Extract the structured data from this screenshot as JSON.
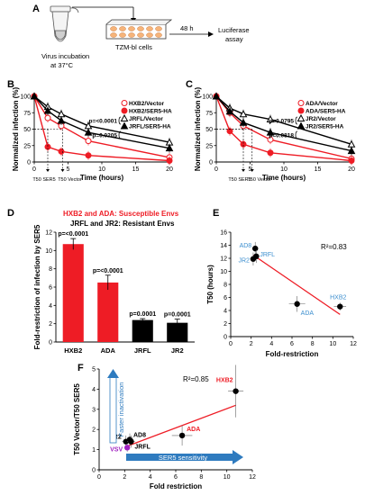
{
  "figure": {
    "panelA": {
      "letter": "A",
      "left_caption_1": "Virus incubation",
      "left_caption_2": "at 37°C",
      "cells_label": "TZM-bl cells",
      "time_label": "48 h",
      "assay_1": "Luciferase",
      "assay_2": "assay"
    },
    "panelD": {
      "title_1": "HXB2 and ADA:  Susceptible Envs",
      "title_2": "JRFL and JR2:  Resistant Envs"
    },
    "colors": {
      "red": "#ee1c25",
      "black": "#000000",
      "blue_label": "#3d8fcf",
      "purple": "#a020c0",
      "arrow_blue": "#2e7bbf"
    }
  },
  "chart_data": [
    {
      "panel": "B",
      "type": "line",
      "xlabel": "Time (hours)",
      "ylabel": "Normalized infection (%)",
      "xlim": [
        0,
        20
      ],
      "ylim": [
        0,
        100
      ],
      "xticks": [
        "0",
        "5",
        "10",
        "15",
        "20"
      ],
      "yticks": [
        "0",
        "25",
        "50",
        "75",
        "100"
      ],
      "x": [
        0,
        2,
        4,
        8,
        20
      ],
      "series": [
        {
          "name": "HXB2/Vector",
          "color": "#ee1c25",
          "marker": "circle-open",
          "values": [
            100,
            67,
            55,
            32,
            7
          ]
        },
        {
          "name": "HXB2/SER5-HA",
          "color": "#ee1c25",
          "marker": "circle-filled",
          "values": [
            100,
            23,
            16,
            10,
            2
          ]
        },
        {
          "name": "JRFL/Vector",
          "color": "#000000",
          "marker": "triangle-open",
          "values": [
            100,
            84,
            73,
            55,
            30
          ]
        },
        {
          "name": "JRFL/SER5-HA",
          "color": "#000000",
          "marker": "triangle-filled",
          "values": [
            100,
            78,
            63,
            45,
            21
          ]
        }
      ],
      "pvalues": [
        "p=<0.0001",
        "p=0.0205"
      ],
      "annotations": [
        "T50 SER5",
        "T50 Vector"
      ]
    },
    {
      "panel": "C",
      "type": "line",
      "xlabel": "Time (hours)",
      "ylabel": "Normalized infection (%)",
      "xlim": [
        0,
        20
      ],
      "ylim": [
        0,
        100
      ],
      "xticks": [
        "0",
        "5",
        "10",
        "15",
        "20"
      ],
      "yticks": [
        "0",
        "25",
        "50",
        "75",
        "100"
      ],
      "x": [
        0,
        2,
        4,
        8,
        20
      ],
      "series": [
        {
          "name": "ADA/Vector",
          "color": "#ee1c25",
          "marker": "circle-open",
          "values": [
            100,
            75,
            55,
            34,
            5
          ]
        },
        {
          "name": "ADA/SER5-HA",
          "color": "#ee1c25",
          "marker": "circle-filled",
          "values": [
            100,
            47,
            27,
            14,
            2
          ]
        },
        {
          "name": "JR2/Vector",
          "color": "#000000",
          "marker": "triangle-open",
          "values": [
            100,
            82,
            73,
            65,
            27
          ]
        },
        {
          "name": "JR2/SER5-HA",
          "color": "#000000",
          "marker": "triangle-filled",
          "values": [
            100,
            77,
            60,
            45,
            17
          ]
        }
      ],
      "pvalues": [
        "p=0.0795",
        "p=0.0818"
      ],
      "annotations": [
        "T50 SER5",
        "T50 Vector"
      ]
    },
    {
      "panel": "D",
      "type": "bar",
      "ylabel": "Fold-restriction of infection by SER5",
      "ylim": [
        0,
        12
      ],
      "yticks": [
        "0",
        "2",
        "4",
        "6",
        "8",
        "10",
        "12"
      ],
      "categories": [
        "HXB2",
        "ADA",
        "JRFL",
        "JR2"
      ],
      "values": [
        10.7,
        6.5,
        2.4,
        2.1
      ],
      "errors": [
        0.6,
        0.8,
        0.15,
        0.4
      ],
      "colors": [
        "#ee1c25",
        "#ee1c25",
        "#000000",
        "#000000"
      ],
      "labels": [
        "p=<0.0001",
        "p=<0.0001",
        "p=0.0001",
        "p=0.0001"
      ]
    },
    {
      "panel": "E",
      "type": "scatter",
      "xlabel": "Fold-restriction",
      "ylabel": "T50 (hours)",
      "xlim": [
        0,
        12
      ],
      "ylim": [
        0,
        16
      ],
      "xticks": [
        "0",
        "2",
        "4",
        "6",
        "8",
        "10",
        "12"
      ],
      "yticks": [
        "0",
        "2",
        "4",
        "6",
        "8",
        "10",
        "12",
        "14",
        "16"
      ],
      "points": [
        {
          "label": "AD8",
          "x": 2.4,
          "y": 13.5,
          "xerr": 0.3,
          "yerr": 1.0
        },
        {
          "label": "JRFL",
          "x": 2.5,
          "y": 12.3,
          "xerr": 0.3,
          "yerr": 1.0
        },
        {
          "label": "JR2",
          "x": 2.2,
          "y": 11.9,
          "xerr": 0.3,
          "yerr": 1.0
        },
        {
          "label": "ADA",
          "x": 6.5,
          "y": 5.0,
          "xerr": 0.8,
          "yerr": 1.2
        },
        {
          "label": "HXB2",
          "x": 10.7,
          "y": 4.6,
          "xerr": 0.6,
          "yerr": 0.6
        }
      ],
      "fit": {
        "x": [
          2.2,
          10.7
        ],
        "y": [
          12.5,
          3.4
        ]
      },
      "r2": "R²=0.83"
    },
    {
      "panel": "F",
      "type": "scatter",
      "xlabel": "Fold restriction",
      "ylabel": "T50 Vector/T50 SER5",
      "xlim": [
        0,
        12
      ],
      "ylim": [
        0,
        5
      ],
      "xticks": [
        "0",
        "2",
        "4",
        "6",
        "8",
        "10",
        "12"
      ],
      "yticks": [
        "0",
        "1",
        "2",
        "3",
        "4",
        "5"
      ],
      "points": [
        {
          "label": "AD8",
          "x": 2.4,
          "y": 1.5,
          "xerr": 0.3,
          "yerr": 0.3,
          "color": "#000000"
        },
        {
          "label": "JR2",
          "x": 2.1,
          "y": 1.4,
          "xerr": 0.3,
          "yerr": 0.3,
          "color": "#000000"
        },
        {
          "label": "JRFL",
          "x": 2.5,
          "y": 1.4,
          "xerr": 0.3,
          "yerr": 0.3,
          "color": "#000000"
        },
        {
          "label": "VSV",
          "x": 2.2,
          "y": 1.1,
          "xerr": 0.2,
          "yerr": 0.2,
          "color": "#a020c0"
        },
        {
          "label": "ADA",
          "x": 6.5,
          "y": 1.7,
          "xerr": 0.8,
          "yerr": 0.5,
          "color": "#000000"
        },
        {
          "label": "HXB2",
          "x": 10.7,
          "y": 3.9,
          "xerr": 0.6,
          "yerr": 1.3,
          "color": "#000000"
        }
      ],
      "fit": {
        "x": [
          2.1,
          10.7
        ],
        "y": [
          1.15,
          3.2
        ]
      },
      "r2": "R²=0.85",
      "annotations": [
        "Faster inactivation",
        "SER5 sensitivity"
      ]
    }
  ]
}
